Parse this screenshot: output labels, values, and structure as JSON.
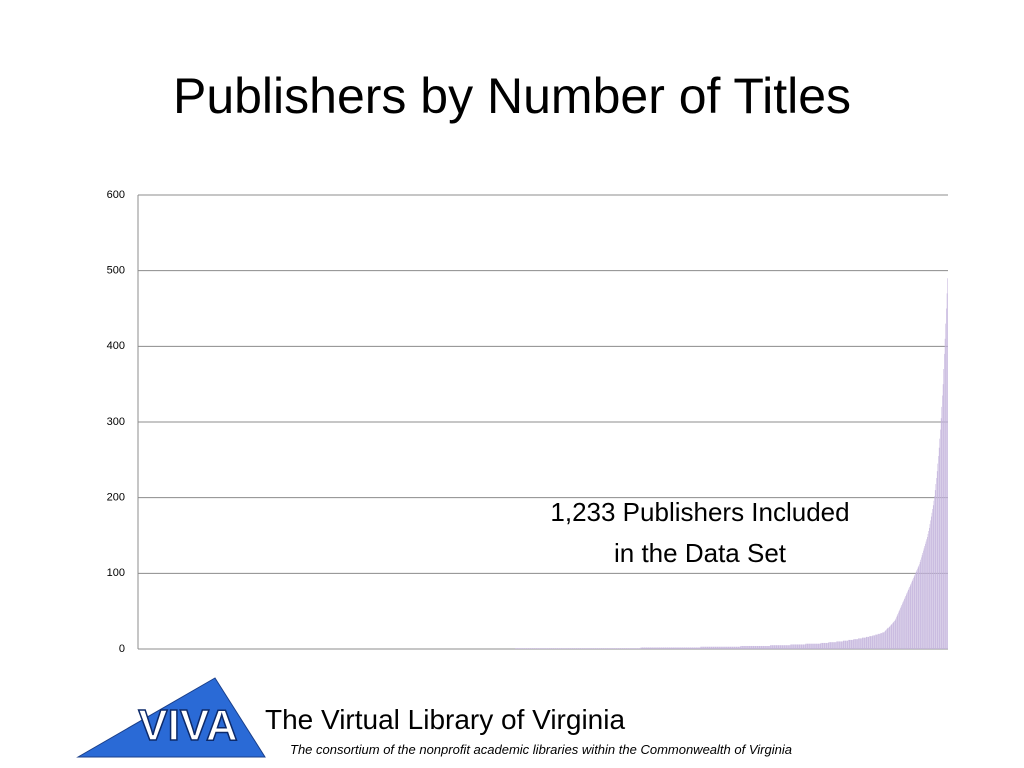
{
  "chart_data": {
    "type": "bar",
    "title": "Publishers by Number of Titles",
    "annotation": [
      "1,233 Publishers Included",
      "in the Data Set"
    ],
    "color": "#c3b3dc",
    "ylim": [
      0,
      600
    ],
    "yticks": [
      0,
      100,
      200,
      300,
      400,
      500,
      600
    ],
    "grid": true,
    "values": [
      0,
      0,
      0,
      0,
      0,
      0,
      0,
      0,
      0,
      0,
      0,
      0,
      0,
      0,
      0,
      0,
      0,
      0,
      0,
      0,
      0,
      0,
      0,
      0,
      0,
      0,
      0,
      0,
      0,
      0,
      0,
      0,
      0,
      0,
      0,
      0,
      0,
      0,
      0,
      0,
      0,
      0,
      0,
      0,
      0,
      0,
      0,
      0,
      0,
      0,
      0,
      0,
      0,
      0,
      0,
      0,
      0,
      0,
      0,
      0,
      0,
      0,
      0,
      0,
      0,
      0,
      0,
      0,
      0,
      0,
      0,
      0,
      0,
      0,
      0,
      0,
      0,
      0,
      0,
      0,
      0,
      0,
      0,
      0,
      0,
      0,
      0,
      0,
      0,
      0,
      0,
      0,
      0,
      0,
      0,
      0,
      0,
      0,
      0,
      0,
      0,
      0,
      0,
      0,
      0,
      0,
      0,
      0,
      0,
      0,
      0,
      0,
      0,
      0,
      0,
      0,
      0,
      0,
      0,
      0,
      0,
      0,
      0,
      0,
      0,
      0,
      0,
      0,
      0,
      0,
      0,
      0,
      0,
      0,
      0,
      0,
      0,
      0,
      0,
      0,
      0,
      0,
      0,
      0,
      0,
      0,
      0,
      0,
      0,
      0,
      0,
      0,
      0,
      0,
      0,
      0,
      0,
      0,
      0,
      0,
      0,
      0,
      0,
      0,
      0,
      0,
      0,
      0,
      0,
      0,
      0,
      0,
      0,
      0,
      0,
      0,
      0,
      0,
      0,
      0,
      0,
      0,
      0,
      0,
      0,
      0,
      0,
      0,
      0,
      0,
      0,
      0,
      0,
      0,
      0,
      0,
      0,
      0,
      0,
      0,
      0,
      0,
      0,
      0,
      0,
      0,
      0,
      0,
      0,
      0,
      0,
      0,
      0,
      0,
      0,
      0,
      0,
      0,
      0,
      0,
      0,
      0,
      0,
      0,
      0,
      0,
      0,
      0,
      0,
      0,
      0,
      0,
      0,
      0,
      0,
      0,
      0,
      0,
      0,
      0,
      0,
      0,
      0,
      0,
      0,
      0,
      0,
      0,
      0,
      0,
      0,
      0,
      0,
      0,
      0,
      0,
      0,
      0,
      0,
      0,
      0,
      0,
      0,
      0,
      0,
      0,
      0,
      0,
      0,
      0,
      0,
      0,
      0,
      0,
      0,
      0,
      0,
      0,
      0,
      0,
      0,
      0,
      0,
      0,
      0,
      0,
      0,
      0,
      0,
      0,
      0,
      0,
      0,
      0,
      0,
      0,
      0,
      0,
      0,
      0,
      0,
      0,
      0,
      0,
      0,
      0,
      0,
      0,
      0,
      0,
      0,
      0,
      0,
      0,
      0,
      0,
      0,
      0,
      0,
      0,
      0,
      0,
      0,
      0,
      0,
      0,
      0,
      0,
      0,
      0,
      0,
      0,
      0,
      0,
      0,
      0,
      0,
      0,
      0,
      0,
      0,
      0,
      0,
      0,
      0,
      0,
      0,
      0,
      0,
      0,
      0,
      0,
      0,
      0,
      0,
      0,
      0,
      0,
      0,
      0,
      0,
      0,
      0,
      0,
      0,
      0,
      0,
      0,
      0,
      0,
      0,
      0,
      0,
      0,
      0,
      0,
      0,
      0,
      0,
      0,
      0,
      0,
      0,
      0,
      0,
      0,
      0,
      0,
      0,
      0,
      0,
      0,
      0,
      0,
      0,
      0,
      0,
      0,
      0,
      0,
      0,
      0,
      0,
      0,
      0,
      0,
      0,
      0,
      0,
      0,
      0,
      0,
      0,
      0,
      0,
      0,
      0,
      0,
      0,
      0,
      0,
      0,
      0,
      0,
      0,
      0,
      0,
      0,
      0,
      0,
      0,
      0,
      0,
      0,
      0,
      0,
      0,
      0,
      0,
      0,
      0,
      0,
      0,
      0,
      0,
      0,
      0,
      0,
      0,
      0,
      0,
      0,
      0,
      0,
      0,
      0,
      0,
      0,
      0,
      0,
      0,
      0,
      0,
      0,
      0,
      0,
      0,
      0,
      0,
      0,
      0,
      0,
      0,
      0,
      0,
      0,
      0,
      0,
      0,
      0,
      0,
      0,
      0,
      0,
      0,
      0,
      0,
      0,
      0,
      0,
      0,
      0,
      0,
      0,
      0,
      0,
      0,
      0,
      0,
      0,
      0,
      0,
      0,
      0,
      0,
      0,
      0,
      0,
      0,
      0,
      0,
      0,
      0,
      0,
      0,
      0,
      0,
      0,
      0,
      0,
      0,
      0,
      0,
      0,
      0,
      0,
      0,
      0,
      0,
      0,
      0,
      0,
      0,
      0,
      0,
      0,
      0,
      0,
      0,
      0,
      0,
      0,
      0,
      0,
      0,
      0,
      0,
      0,
      0,
      0,
      0,
      0,
      0,
      0,
      0,
      0,
      0,
      0,
      0,
      0,
      0,
      0,
      0,
      0,
      0,
      0,
      0,
      0,
      0,
      0,
      0,
      0,
      0,
      0,
      1,
      1,
      1,
      1,
      1,
      1,
      1,
      1,
      1,
      1,
      1,
      1,
      1,
      1,
      1,
      1,
      1,
      1,
      1,
      1,
      1,
      1,
      1,
      1,
      1,
      1,
      1,
      1,
      1,
      1,
      1,
      1,
      1,
      1,
      1,
      1,
      1,
      1,
      1,
      1,
      1,
      1,
      1,
      1,
      1,
      1,
      1,
      1,
      1,
      1,
      1,
      1,
      1,
      1,
      1,
      1,
      1,
      1,
      1,
      1,
      1,
      1,
      1,
      1,
      1,
      1,
      1,
      1,
      1,
      1,
      1,
      1,
      1,
      1,
      1,
      1,
      1,
      1,
      1,
      1,
      1,
      1,
      1,
      1,
      1,
      1,
      1,
      1,
      1,
      1,
      1,
      1,
      1,
      1,
      1,
      1,
      1,
      1,
      1,
      1,
      1,
      1,
      1,
      1,
      1,
      1,
      1,
      1,
      1,
      1,
      1,
      1,
      1,
      1,
      1,
      1,
      1,
      1,
      1,
      1,
      1,
      1,
      1,
      1,
      1,
      1,
      1,
      1,
      1,
      1,
      1,
      1,
      1,
      1,
      1,
      1,
      1,
      1,
      1,
      1,
      1,
      1,
      1,
      1,
      1,
      1,
      1,
      1,
      1,
      1,
      1,
      1,
      1,
      1,
      1,
      1,
      1,
      1,
      1,
      1,
      1,
      1,
      1,
      1,
      1,
      1,
      1,
      1,
      1,
      1,
      1,
      1,
      1,
      1,
      1,
      1,
      1,
      1,
      1,
      1,
      1,
      1,
      1,
      1,
      1,
      1,
      1,
      1,
      1,
      1,
      1,
      2,
      2,
      2,
      2,
      2,
      2,
      2,
      2,
      2,
      2,
      2,
      2,
      2,
      2,
      2,
      2,
      2,
      2,
      2,
      2,
      2,
      2,
      2,
      2,
      2,
      2,
      2,
      2,
      2,
      2,
      2,
      2,
      2,
      2,
      2,
      2,
      2,
      2,
      2,
      2,
      2,
      2,
      2,
      2,
      2,
      2,
      2,
      2,
      2,
      2,
      2,
      2,
      2,
      2,
      2,
      2,
      2,
      2,
      2,
      2,
      2,
      2,
      2,
      2,
      2,
      2,
      2,
      2,
      2,
      2,
      2,
      2,
      2,
      2,
      2,
      2,
      2,
      2,
      2,
      2,
      2,
      2,
      2,
      2,
      2,
      2,
      2,
      2,
      2,
      2,
      2,
      3,
      3,
      3,
      3,
      3,
      3,
      3,
      3,
      3,
      3,
      3,
      3,
      3,
      3,
      3,
      3,
      3,
      3,
      3,
      3,
      3,
      3,
      3,
      3,
      3,
      3,
      3,
      3,
      3,
      3,
      3,
      3,
      3,
      3,
      3,
      3,
      3,
      3,
      3,
      3,
      3,
      3,
      3,
      3,
      3,
      3,
      3,
      3,
      3,
      3,
      3,
      3,
      3,
      3,
      3,
      3,
      3,
      3,
      3,
      3,
      3,
      4,
      4,
      4,
      4,
      4,
      4,
      4,
      4,
      4,
      4,
      4,
      4,
      4,
      4,
      4,
      4,
      4,
      4,
      4,
      4,
      4,
      4,
      4,
      4,
      4,
      4,
      4,
      4,
      4,
      4,
      4,
      4,
      4,
      4,
      4,
      4,
      4,
      4,
      4,
      4,
      4,
      4,
      4,
      4,
      4,
      5,
      5,
      5,
      5,
      5,
      5,
      5,
      5,
      5,
      5,
      5,
      5,
      5,
      5,
      5,
      5,
      5,
      5,
      5,
      5,
      5,
      5,
      5,
      5,
      5,
      5,
      5,
      5,
      5,
      5,
      5,
      6,
      6,
      6,
      6,
      6,
      6,
      6,
      6,
      6,
      6,
      6,
      6,
      6,
      6,
      6,
      6,
      6,
      6,
      6,
      6,
      6,
      6,
      6,
      7,
      7,
      7,
      7,
      7,
      7,
      7,
      7,
      7,
      7,
      7,
      7,
      7,
      7,
      7,
      7,
      7,
      7,
      7,
      7,
      7,
      7,
      7,
      8,
      8,
      8,
      8,
      8,
      8,
      8,
      8,
      8,
      8,
      8,
      8,
      9,
      9,
      9,
      9,
      9,
      9,
      9,
      9,
      9,
      9,
      9,
      9,
      10,
      10,
      10,
      10,
      10,
      10,
      10,
      10,
      10,
      10,
      11,
      11,
      11,
      11,
      11,
      11,
      11,
      11,
      12,
      12,
      12,
      12,
      12,
      12,
      12,
      12,
      13,
      13,
      13,
      13,
      13,
      13,
      13,
      14,
      14,
      14,
      14,
      14,
      14,
      15,
      15,
      15,
      15,
      15,
      15,
      16,
      16,
      16,
      16,
      16,
      17,
      17,
      17,
      17,
      17,
      18,
      18,
      18,
      18,
      19,
      19,
      19,
      19,
      20,
      20,
      20,
      20,
      21,
      21,
      21,
      22,
      22,
      22,
      23,
      24,
      25,
      26,
      27,
      28,
      28,
      29,
      30,
      31,
      32,
      33,
      34,
      35,
      36,
      37,
      38,
      40,
      42,
      44,
      46,
      48,
      50,
      52,
      54,
      56,
      58,
      60,
      62,
      64,
      66,
      68,
      70,
      72,
      74,
      76,
      78,
      80,
      82,
      84,
      86,
      88,
      90,
      92,
      94,
      96,
      98,
      100,
      102,
      104,
      106,
      108,
      110,
      112,
      115,
      118,
      121,
      124,
      127,
      130,
      133,
      136,
      139,
      142,
      145,
      148,
      152,
      156,
      160,
      165,
      170,
      175,
      180,
      185,
      190,
      196,
      202,
      210,
      218,
      226,
      235,
      245,
      255,
      266,
      278,
      290,
      305,
      320,
      335,
      350,
      370,
      390,
      410,
      430,
      450,
      470,
      490
    ]
  },
  "footer": {
    "logo": "VIVA",
    "title": "The Virtual Library of Virginia",
    "subtitle": "The consortium of the nonprofit academic libraries within the Commonwealth of Virginia"
  }
}
